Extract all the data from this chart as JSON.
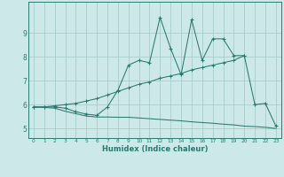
{
  "xlabel": "Humidex (Indice chaleur)",
  "bg_color": "#cce8e8",
  "plot_bg_color": "#cce8e8",
  "line_color": "#2a7a70",
  "grid_color": "#aacccc",
  "xlim": [
    -0.5,
    23.5
  ],
  "ylim": [
    4.6,
    10.3
  ],
  "xticks": [
    0,
    1,
    2,
    3,
    4,
    5,
    6,
    7,
    8,
    9,
    10,
    11,
    12,
    13,
    14,
    15,
    16,
    17,
    18,
    19,
    20,
    21,
    22,
    23
  ],
  "yticks": [
    5,
    6,
    7,
    8,
    9
  ],
  "main_x": [
    0,
    1,
    2,
    3,
    4,
    5,
    6,
    7,
    8,
    9,
    10,
    11,
    12,
    13,
    14,
    15,
    16,
    17,
    18,
    19,
    20,
    21,
    22,
    23
  ],
  "main_y": [
    5.9,
    5.9,
    5.9,
    5.85,
    5.7,
    5.6,
    5.55,
    5.9,
    6.6,
    7.65,
    7.85,
    7.75,
    9.65,
    8.35,
    7.25,
    9.55,
    7.85,
    8.75,
    8.75,
    8.05,
    8.05,
    6.0,
    6.05,
    5.1
  ],
  "upper_x": [
    0,
    1,
    2,
    3,
    4,
    5,
    6,
    7,
    8,
    9,
    10,
    11,
    12,
    13,
    14,
    15,
    16,
    17,
    18,
    19,
    20
  ],
  "upper_y": [
    5.9,
    5.9,
    5.95,
    6.0,
    6.05,
    6.15,
    6.25,
    6.4,
    6.55,
    6.7,
    6.85,
    6.95,
    7.1,
    7.2,
    7.3,
    7.45,
    7.55,
    7.65,
    7.75,
    7.85,
    8.05
  ],
  "lower_x": [
    0,
    1,
    2,
    3,
    4,
    5,
    6,
    7,
    8,
    9,
    10,
    11,
    12,
    13,
    14,
    15,
    16,
    17,
    18,
    19,
    20,
    21,
    22,
    23
  ],
  "lower_y": [
    5.9,
    5.88,
    5.85,
    5.72,
    5.62,
    5.52,
    5.48,
    5.48,
    5.47,
    5.47,
    5.44,
    5.41,
    5.38,
    5.35,
    5.32,
    5.28,
    5.25,
    5.22,
    5.18,
    5.15,
    5.1,
    5.08,
    5.05,
    5.0
  ]
}
